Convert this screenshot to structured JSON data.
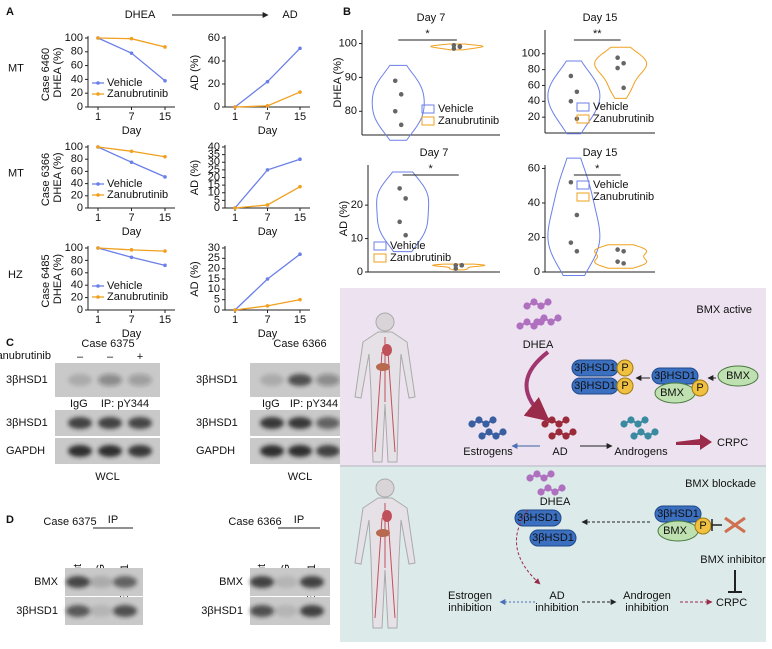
{
  "panel_labels": [
    "A",
    "B",
    "C",
    "D",
    "E"
  ],
  "panel_a": {
    "header_left": "DHEA",
    "header_right": "AD",
    "rows": [
      {
        "genotype": "MT",
        "case": "Case 6460"
      },
      {
        "genotype": "MT",
        "case": "Case 6366"
      },
      {
        "genotype": "HZ",
        "case": "Case 6485"
      }
    ]
  },
  "chart_data": [
    {
      "type": "line",
      "categories": [
        "1",
        "7",
        "15"
      ],
      "xlabel": "Day",
      "ylabel": "DHEA (%)",
      "ylim": [
        0,
        100
      ],
      "yticks": [
        0,
        20,
        40,
        60,
        80,
        100
      ],
      "legend": "lower left",
      "series": [
        {
          "name": "Vehicle",
          "color": "#6b7fe8",
          "values": [
            100,
            78,
            38
          ]
        },
        {
          "name": "Zanubrutinib",
          "color": "#f0a01e",
          "values": [
            100,
            99,
            87
          ]
        }
      ]
    },
    {
      "type": "line",
      "categories": [
        "1",
        "7",
        "15"
      ],
      "xlabel": "Day",
      "ylabel": "AD (%)",
      "ylim": [
        0,
        60
      ],
      "yticks": [
        0,
        20,
        40,
        60
      ],
      "series": [
        {
          "color": "#6b7fe8",
          "values": [
            0,
            22,
            51
          ]
        },
        {
          "color": "#f0a01e",
          "values": [
            0,
            1,
            13
          ]
        }
      ]
    },
    {
      "type": "line",
      "categories": [
        "1",
        "7",
        "15"
      ],
      "xlabel": "Day",
      "ylabel": "DHEA (%)",
      "ylim": [
        0,
        100
      ],
      "yticks": [
        0,
        20,
        40,
        60,
        80,
        100
      ],
      "legend": "lower left",
      "series": [
        {
          "name": "Vehicle",
          "color": "#6b7fe8",
          "values": [
            100,
            75,
            51
          ]
        },
        {
          "name": "Zanubrutinib",
          "color": "#f0a01e",
          "values": [
            100,
            93,
            84
          ]
        }
      ]
    },
    {
      "type": "line",
      "categories": [
        "1",
        "7",
        "15"
      ],
      "xlabel": "Day",
      "ylabel": "AD (%)",
      "ylim": [
        0,
        40
      ],
      "yticks": [
        0,
        5,
        10,
        15,
        20,
        25,
        30,
        35,
        40
      ],
      "series": [
        {
          "color": "#6b7fe8",
          "values": [
            0,
            25,
            32
          ]
        },
        {
          "color": "#f0a01e",
          "values": [
            0,
            2,
            14
          ]
        }
      ]
    },
    {
      "type": "line",
      "categories": [
        "1",
        "7",
        "15"
      ],
      "xlabel": "Day",
      "ylabel": "DHEA (%)",
      "ylim": [
        0,
        100
      ],
      "yticks": [
        0,
        20,
        40,
        60,
        80,
        100
      ],
      "legend": "lower left",
      "series": [
        {
          "name": "Vehicle",
          "color": "#6b7fe8",
          "values": [
            100,
            85,
            72
          ]
        },
        {
          "name": "Zanubrutinib",
          "color": "#f0a01e",
          "values": [
            100,
            97,
            95
          ]
        }
      ]
    },
    {
      "type": "line",
      "categories": [
        "1",
        "7",
        "15"
      ],
      "xlabel": "Day",
      "ylabel": "AD (%)",
      "ylim": [
        0,
        30
      ],
      "yticks": [
        0,
        5,
        10,
        15,
        20,
        25,
        30
      ],
      "series": [
        {
          "color": "#6b7fe8",
          "values": [
            0,
            15,
            27
          ]
        },
        {
          "color": "#f0a01e",
          "values": [
            0,
            2,
            5
          ]
        }
      ]
    },
    {
      "type": "violin",
      "title": "Day 7",
      "ylabel": "DHEA (%)",
      "ylim": [
        73,
        104
      ],
      "yticks": [
        80,
        90,
        100
      ],
      "significance": "*",
      "legend": "lower right",
      "marker_color": "#666666",
      "series": [
        {
          "name": "Vehicle",
          "color": "#6b7fe8",
          "values": [
            89,
            85,
            80,
            76
          ]
        },
        {
          "name": "Zanubrutinib",
          "color": "#f0a01e",
          "values": [
            99.5,
            99,
            98.5,
            99.2
          ]
        }
      ]
    },
    {
      "type": "violin",
      "title": "Day 15",
      "ylim": [
        0,
        130
      ],
      "yticks": [
        20,
        40,
        60,
        80,
        100
      ],
      "significance": "**",
      "legend": "lower right",
      "marker_color": "#666666",
      "series": [
        {
          "name": "Vehicle",
          "color": "#6b7fe8",
          "values": [
            72,
            52,
            40,
            18
          ]
        },
        {
          "name": "Zanubrutinib",
          "color": "#f0a01e",
          "values": [
            95,
            88,
            82,
            57
          ]
        }
      ]
    },
    {
      "type": "violin",
      "title": "Day 7",
      "ylabel": "AD (%)",
      "ylim": [
        0,
        32
      ],
      "yticks": [
        0,
        10,
        20
      ],
      "significance": "*",
      "legend": "lower left",
      "marker_color": "#666666",
      "series": [
        {
          "name": "Vehicle",
          "color": "#6b7fe8",
          "values": [
            25,
            22,
            15,
            11
          ]
        },
        {
          "name": "Zanubrutinib",
          "color": "#f0a01e",
          "values": [
            2,
            2,
            1,
            2
          ]
        }
      ]
    },
    {
      "type": "violin",
      "title": "Day 15",
      "ylim": [
        0,
        62
      ],
      "yticks": [
        0,
        20,
        40,
        60
      ],
      "significance": "*",
      "legend": "upper right",
      "marker_color": "#666666",
      "series": [
        {
          "name": "Vehicle",
          "color": "#6b7fe8",
          "values": [
            52,
            33,
            17,
            12
          ]
        },
        {
          "name": "Zanubrutinib",
          "color": "#f0a01e",
          "values": [
            13,
            12,
            6,
            5
          ]
        }
      ]
    }
  ],
  "blots_c": [
    {
      "case": "Case 6375",
      "treatment": "Zanubrutinib",
      "signs": [
        "–",
        "–",
        "+"
      ],
      "ip_lanes": [
        "IgG",
        "IP: pY344"
      ],
      "rows": [
        "3βHSD1",
        "3βHSD1",
        "GAPDH"
      ],
      "footer": "WCL"
    },
    {
      "case": "Case 6366",
      "ip_lanes": [
        "IgG",
        "IP: pY344"
      ],
      "rows": [
        "3βHSD1",
        "3βHSD1",
        "GAPDH"
      ],
      "footer": "WCL"
    }
  ],
  "blots_d": [
    {
      "case": "Case 6375",
      "ip": "IP",
      "lanes": [
        "Input",
        "IgG",
        "3βHSD1"
      ],
      "rows": [
        "BMX",
        "3βHSD1"
      ]
    },
    {
      "case": "Case 6366",
      "ip": "IP",
      "lanes": [
        "Input",
        "IgG",
        "3βHSD1"
      ],
      "rows": [
        "BMX",
        "3βHSD1"
      ]
    }
  ],
  "diagram": {
    "active": {
      "title": "BMX active",
      "dhea": "DHEA",
      "enzyme": "3βHSD1",
      "phospho": "P",
      "kinase": "BMX",
      "estrogens": "Estrogens",
      "ad": "AD",
      "androgens": "Androgens",
      "crpc": "CRPC"
    },
    "blockade": {
      "title": "BMX blockade",
      "dhea": "DHEA",
      "enzyme": "3βHSD1",
      "phospho": "P",
      "kinase": "BMX",
      "inhibitor": "BMX inhibitor",
      "estrogen_inhibition": [
        "Estrogen",
        "inhibition"
      ],
      "ad_inhibition": [
        "AD",
        "inhibition"
      ],
      "androgen_inhibition": [
        "Androgen",
        "inhibition"
      ],
      "crpc": "CRPC"
    }
  }
}
